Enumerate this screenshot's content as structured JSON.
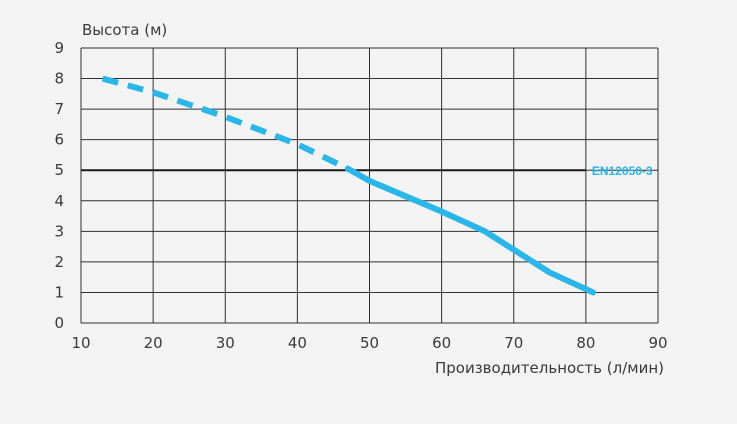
{
  "chart_data": {
    "type": "line",
    "ylabel": "Высота (м)",
    "xlabel": "Производительность (л/мин)",
    "xlim": [
      10,
      90
    ],
    "ylim": [
      0,
      9
    ],
    "xticks": [
      10,
      20,
      30,
      40,
      50,
      60,
      70,
      80,
      90
    ],
    "yticks": [
      0,
      1,
      2,
      3,
      4,
      5,
      6,
      7,
      8,
      9
    ],
    "grid": true,
    "series": [
      {
        "style": "dashed",
        "color": "#29b6e8",
        "x": [
          13,
          20,
          30,
          40,
          47
        ],
        "y": [
          8.0,
          7.55,
          6.75,
          5.85,
          5.05
        ]
      },
      {
        "style": "solid",
        "color": "#29b6e8",
        "x": [
          47,
          50,
          55,
          60,
          66,
          70,
          75,
          81
        ],
        "y": [
          5.05,
          4.65,
          4.15,
          3.65,
          3.0,
          2.4,
          1.65,
          1.0
        ]
      }
    ],
    "reference_line": {
      "y": 5,
      "x_end": 80,
      "color": "#1a1a1a",
      "label": "EN12050-3",
      "label_color": "#29b6e8"
    }
  }
}
